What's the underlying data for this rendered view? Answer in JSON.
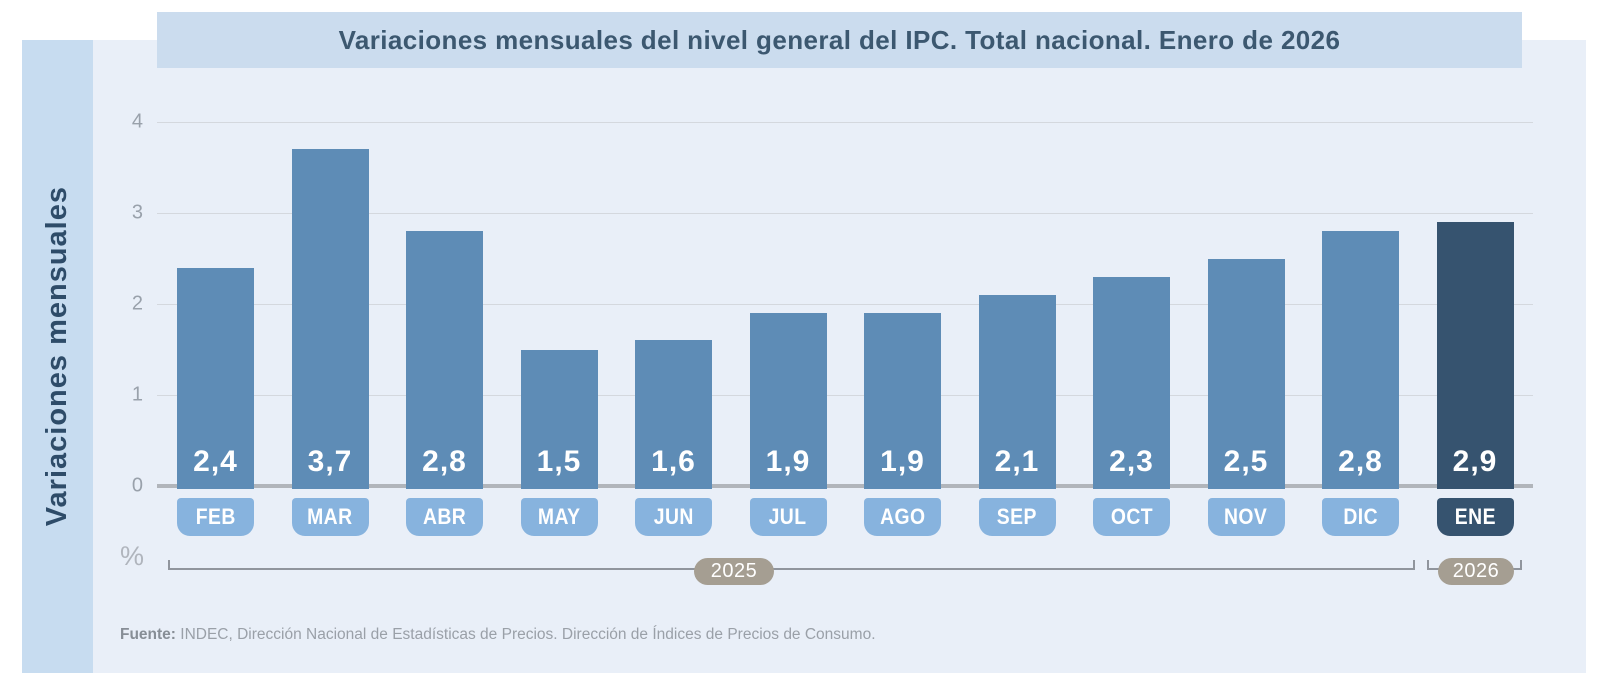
{
  "title": "Variaciones mensuales del nivel general del IPC. Total nacional. Enero de 2026",
  "y_axis_title": "Variaciones mensuales",
  "unit_label": "%",
  "source": {
    "prefix": "Fuente:",
    "text": " INDEC, Dirección Nacional de Estadísticas de Precios. Dirección de Índices de Precios de Consumo."
  },
  "chart_data": {
    "type": "bar",
    "title": "Variaciones mensuales del nivel general del IPC. Total nacional. Enero de 2026",
    "ylabel": "Variaciones mensuales",
    "unit": "%",
    "ylim": [
      0,
      4
    ],
    "y_ticks": [
      4,
      3,
      2,
      1,
      0
    ],
    "grid": "horizontal",
    "categories": [
      "FEB",
      "MAR",
      "ABR",
      "MAY",
      "JUN",
      "JUL",
      "AGO",
      "SEP",
      "OCT",
      "NOV",
      "DIC",
      "ENE"
    ],
    "values": [
      2.4,
      3.7,
      2.8,
      1.5,
      1.6,
      1.9,
      1.9,
      2.1,
      2.3,
      2.5,
      2.8,
      2.9
    ],
    "value_labels": [
      "2,4",
      "3,7",
      "2,8",
      "1,5",
      "1,6",
      "1,9",
      "1,9",
      "2,1",
      "2,3",
      "2,5",
      "2,8",
      "2,9"
    ],
    "highlight_index": 11,
    "year_groups": [
      {
        "label": "2025",
        "categories": [
          "FEB",
          "MAR",
          "ABR",
          "MAY",
          "JUN",
          "JUL",
          "AGO",
          "SEP",
          "OCT",
          "NOV",
          "DIC"
        ]
      },
      {
        "label": "2026",
        "categories": [
          "ENE"
        ]
      }
    ]
  },
  "colors": {
    "strip-bg": "#c7dcf0",
    "titlebar-bg": "#cbdcee",
    "panel-bg": "#e9eff8",
    "bar": "#5e8cb6",
    "bar-dark": "#36536f",
    "badge": "#87b3de",
    "grid": "#d4d8de",
    "axis": "#b1b5bb",
    "title-text": "#3c5870",
    "strip-text": "#2e4c69",
    "pill-bg": "#a59e92",
    "bracket": "#90959d",
    "tick-text": "#99a1ab",
    "source-text": "#9aa0a8"
  }
}
